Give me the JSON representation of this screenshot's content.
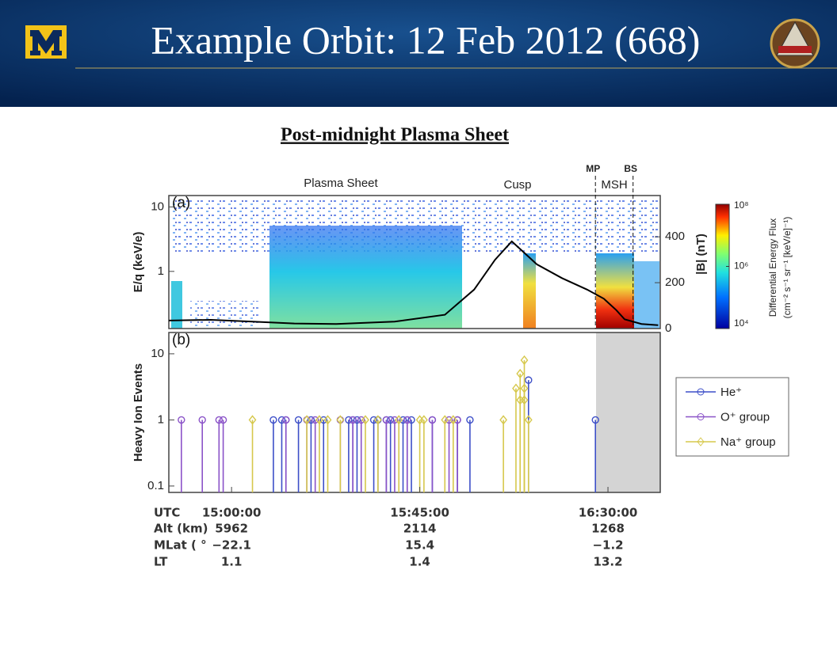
{
  "header": {
    "title": "Example Orbit: 12 Feb 2012 (668)"
  },
  "figure_title": "Post-midnight Plasma Sheet",
  "chart_data": [
    {
      "type": "line",
      "panel_label": "(a)",
      "ylabel": "E/q (keV/e)",
      "y2label": "|B| (nT)",
      "xlim": [
        "14:45:00",
        "16:42:30"
      ],
      "ylog": true,
      "ylim": [
        0.13,
        15
      ],
      "yticks": [
        1,
        10
      ],
      "y2lim": [
        0,
        580
      ],
      "y2ticks": [
        0,
        200,
        400
      ],
      "regions": [
        "Plasma Sheet",
        "Cusp",
        "MSH"
      ],
      "boundaries": [
        {
          "label": "MP",
          "x": "16:27:00"
        },
        {
          "label": "BS",
          "x": "16:36:00"
        }
      ],
      "series": [
        {
          "color": "#000000",
          "axis": "y2",
          "x": [
            "14:45:00",
            "14:55:00",
            "15:05:00",
            "15:15:00",
            "15:25:00",
            "15:39:00",
            "15:51:00",
            "15:58:00",
            "16:03:00",
            "16:07:00",
            "16:10:00",
            "16:13:00",
            "16:19:00",
            "16:25:00",
            "16:29:00",
            "16:32:00",
            "16:34:00",
            "16:38:00",
            "16:42:00"
          ],
          "values": [
            35,
            38,
            30,
            22,
            20,
            30,
            60,
            170,
            300,
            380,
            330,
            280,
            220,
            170,
            130,
            80,
            40,
            20,
            15
          ]
        }
      ],
      "colorbar": {
        "label": "Differential Energy Flux",
        "units": "(cm⁻² s⁻¹ sr⁻¹ [keV/e]⁻¹)",
        "log": true,
        "lim": [
          10000,
          100000000
        ],
        "ticks": [
          {
            "value": 10000,
            "label": "10⁴"
          },
          {
            "value": 1000000,
            "label": "10⁶"
          },
          {
            "value": 100000000,
            "label": "10⁸"
          }
        ]
      }
    },
    {
      "type": "stem",
      "panel_label": "(b)",
      "ylabel": "Heavy Ion Events",
      "xlim": [
        "14:45:00",
        "16:42:30"
      ],
      "xticks": [
        "15:00:00",
        "15:45:00",
        "16:30:00"
      ],
      "ylog": true,
      "ylim": [
        0.08,
        21
      ],
      "yticks": [
        0.1,
        1,
        10
      ],
      "legend": "right",
      "ephemeris": {
        "labels": [
          "UTC",
          "Alt (km)",
          "MLat ( °",
          "LT"
        ],
        "rows": [
          [
            5962,
            2114,
            1268
          ],
          [
            "−22.1",
            "15.4",
            "−1.2"
          ],
          [
            "1.1",
            "1.4",
            "13.2"
          ]
        ]
      },
      "series": [
        {
          "name": "He⁺",
          "color": "#3d4fc8",
          "marker": "circle",
          "x": [
            "15:10:00",
            "15:12:00",
            "15:13:00",
            "15:16:00",
            "15:19:00",
            "15:22:00",
            "15:28:00",
            "15:29:00",
            "15:30:00",
            "15:34:00",
            "15:35:00",
            "15:37:00",
            "15:38:00",
            "15:41:00",
            "15:42:00",
            "15:43:00",
            "15:48:00",
            "15:54:00",
            "15:57:00",
            "16:11:00",
            "16:27:00"
          ],
          "values": [
            1,
            1,
            1,
            1,
            1,
            1,
            1,
            1,
            1,
            1,
            1,
            1,
            1,
            1,
            1,
            1,
            1,
            1,
            1,
            4,
            1
          ]
        },
        {
          "name": "O⁺ group",
          "color": "#8a52c8",
          "marker": "circle",
          "x": [
            "14:48:00",
            "14:53:00",
            "14:57:00",
            "14:58:00",
            "15:13:00",
            "15:18:00",
            "15:20:00",
            "15:26:00",
            "15:29:00",
            "15:31:00",
            "15:37:00",
            "15:39:00",
            "15:42:00",
            "15:48:00",
            "15:52:00",
            "15:54:00"
          ],
          "values": [
            1,
            1,
            1,
            1,
            1,
            1,
            1,
            1,
            1,
            1,
            1,
            1,
            1,
            1,
            1,
            1
          ]
        },
        {
          "name": "Na⁺ group",
          "color": "#d6c84c",
          "marker": "diamond",
          "x": [
            "15:05:00",
            "15:18:00",
            "15:21:00",
            "15:23:00",
            "15:26:00",
            "15:32:00",
            "15:35:00",
            "15:40:00",
            "15:45:00",
            "15:46:00",
            "15:51:00",
            "15:53:00",
            "16:05:00",
            "16:08:00",
            "16:09:00",
            "16:09:00",
            "16:10:00",
            "16:10:00",
            "16:10:00",
            "16:11:00"
          ],
          "values": [
            1,
            1,
            1,
            1,
            1,
            1,
            1,
            1,
            1,
            1,
            1,
            1,
            1,
            3,
            5,
            2,
            8,
            3,
            2,
            1
          ]
        }
      ]
    }
  ]
}
